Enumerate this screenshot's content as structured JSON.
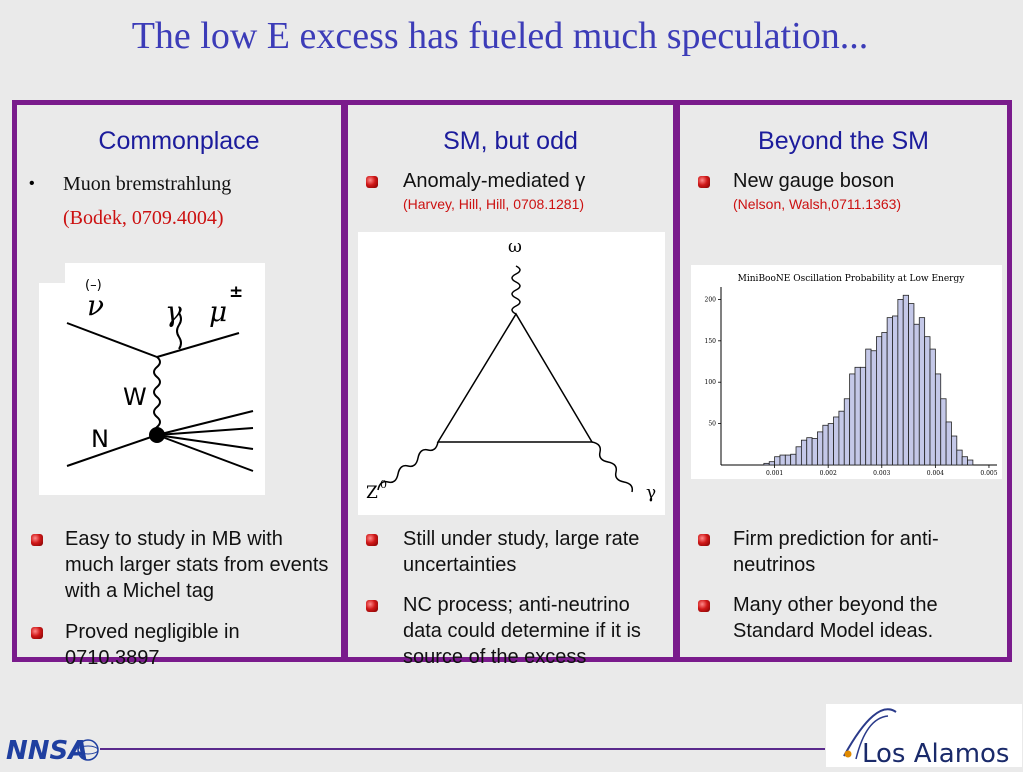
{
  "title": "The low E excess has fueled much speculation...",
  "col1": {
    "heading": "Commonplace",
    "item": "Muon bremstrahlung",
    "ref": "(Bodek, 0709.4004)",
    "diagram": {
      "nu": "ν",
      "nu_mark": "(–)",
      "gamma": "γ",
      "mu": "μ",
      "mu_sign": "±",
      "W": "W",
      "N": "N"
    },
    "bullets": [
      "Easy to study in MB with much larger stats from events with a Michel tag",
      "Proved negligible in 0710.3897"
    ]
  },
  "col2": {
    "heading": "SM, but odd",
    "item": "Anomaly-mediated γ",
    "ref": "(Harvey, Hill, Hill, 0708.1281)",
    "diagram": {
      "omega": "ω",
      "z": "Z",
      "z_sup": "0",
      "gamma": "γ"
    },
    "bullets": [
      "Still under study, large rate uncertainties",
      "NC process; anti-neutrino data could determine if it is source of the excess"
    ]
  },
  "col3": {
    "heading": "Beyond the SM",
    "item": "New gauge boson",
    "ref": "(Nelson, Walsh,0711.1363)",
    "bullets": [
      "Firm prediction for anti-neutrinos",
      "Many other beyond the Standard Model ideas."
    ]
  },
  "chart_data": {
    "type": "bar",
    "title": "MiniBooNE Oscillation Probability at Low Energy",
    "xlabel": "",
    "ylabel": "",
    "xlim": [
      0.0,
      0.00515
    ],
    "ylim": [
      0,
      215
    ],
    "xticks": [
      "0.001",
      "0.002",
      "0.003",
      "0.004",
      "0.005"
    ],
    "yticks": [
      "50",
      "100",
      "150",
      "200"
    ],
    "bin_width": 0.0001,
    "bin_start": 0.0008,
    "values": [
      2,
      4,
      10,
      12,
      12,
      13,
      22,
      30,
      33,
      32,
      40,
      48,
      50,
      58,
      65,
      80,
      110,
      118,
      118,
      140,
      138,
      155,
      160,
      178,
      180,
      200,
      205,
      195,
      170,
      178,
      155,
      140,
      110,
      80,
      52,
      35,
      18,
      10,
      6,
      0
    ]
  },
  "logos": {
    "left": "NNSA",
    "right": "Los Alamos"
  },
  "colors": {
    "frame": "#7a1b8c",
    "heading": "#1c1c9c",
    "title": "#3c3cb8",
    "ref": "#cc1111"
  }
}
